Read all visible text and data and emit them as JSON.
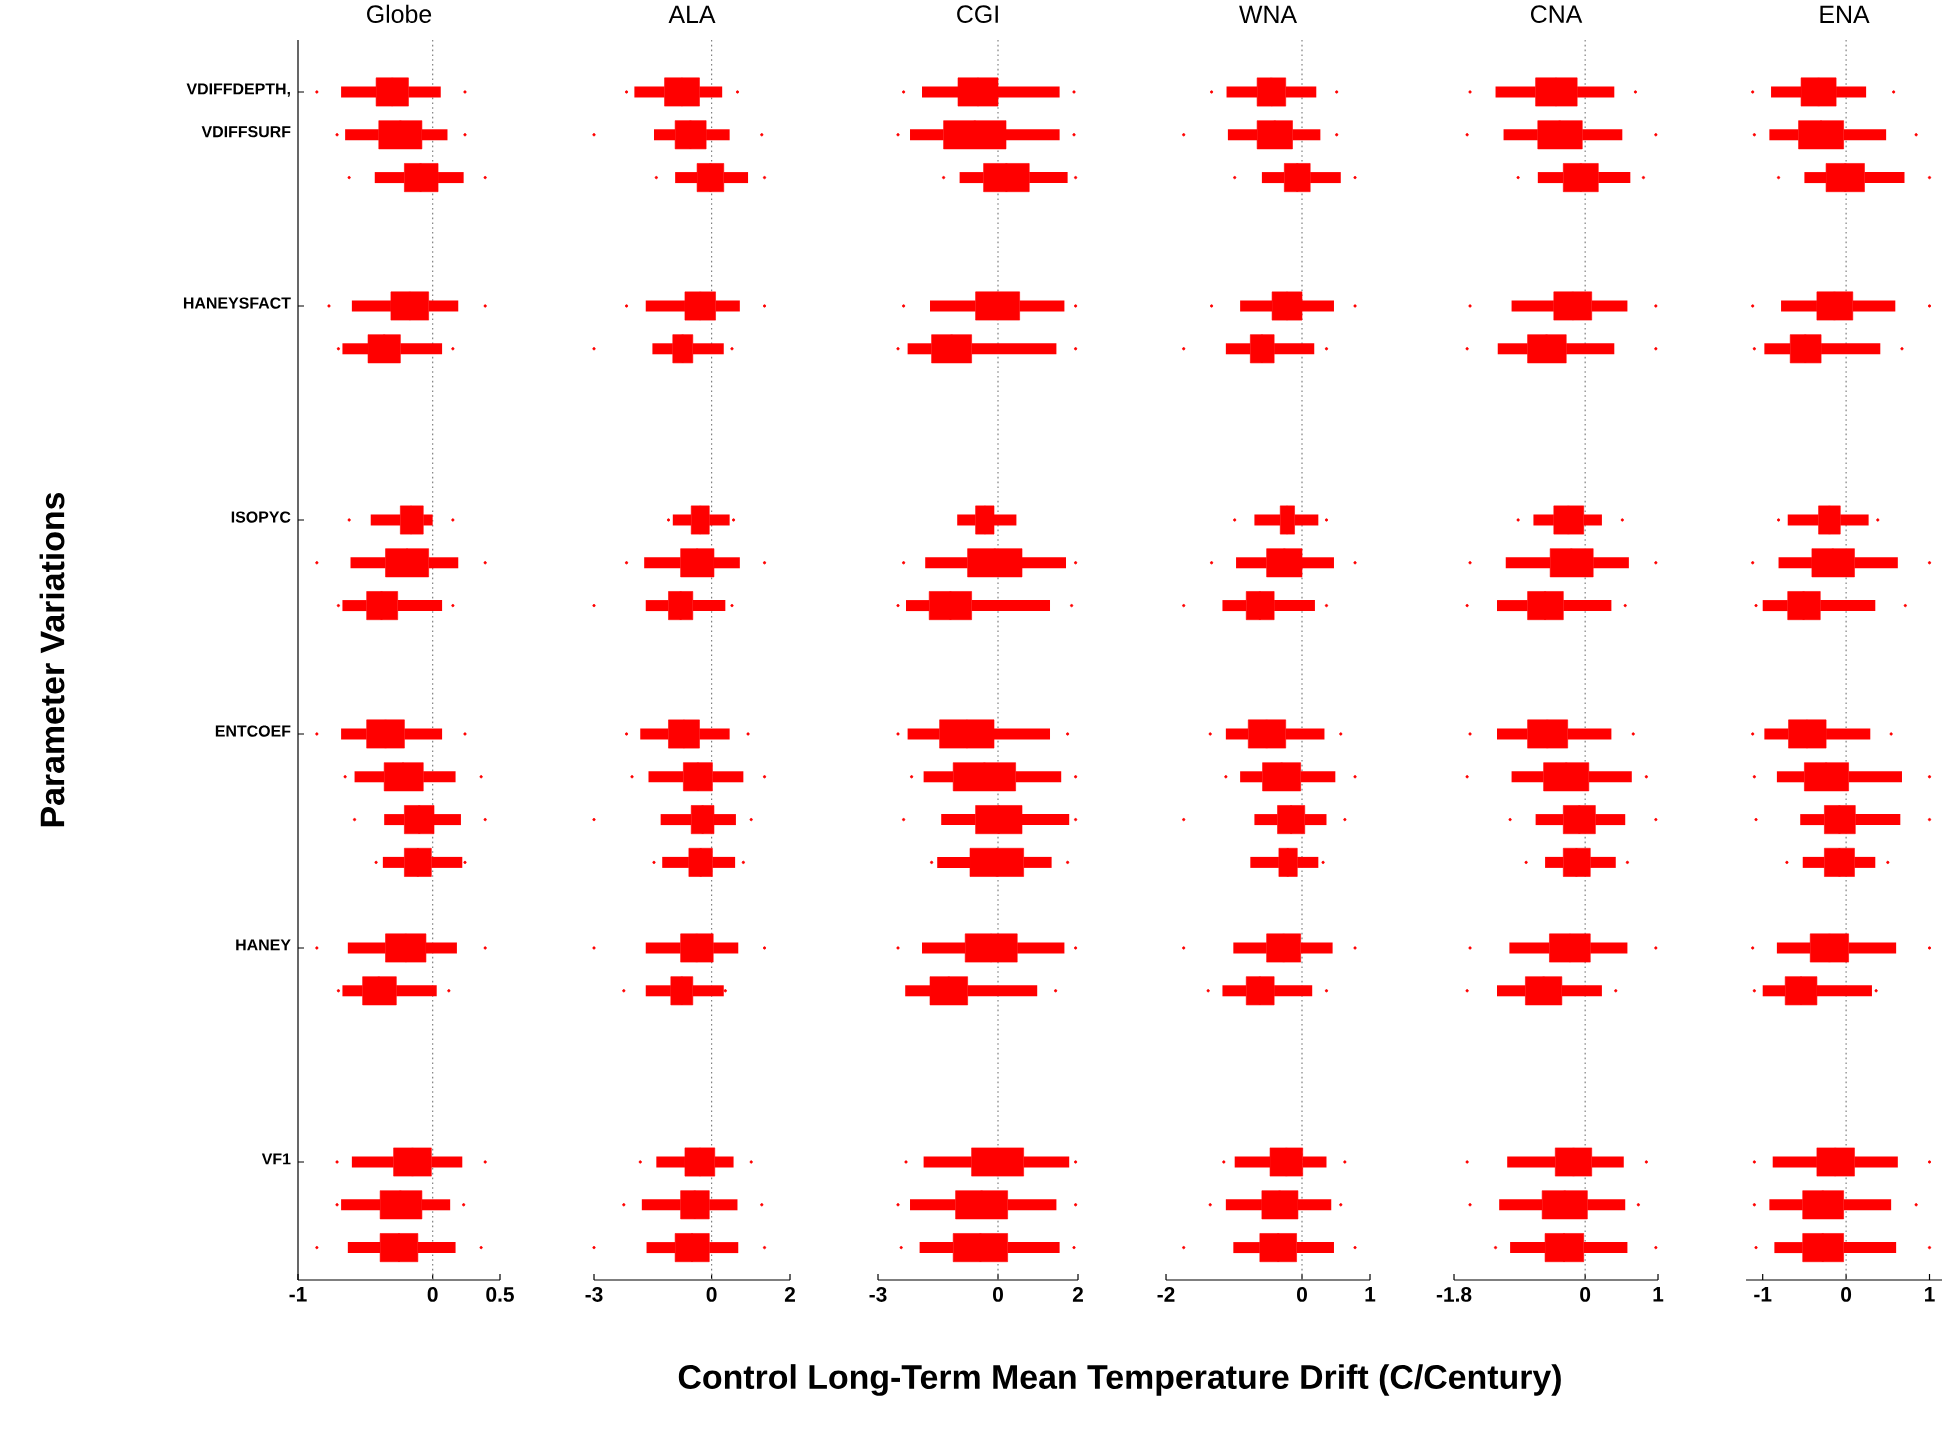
{
  "chart_data": [
    {
      "type": "box",
      "orientation": "horizontal",
      "title": "Globe",
      "xlabel": "Control Long-Term Mean Temperature Drift (C/Century)",
      "ylabel": "Parameter Variations",
      "categories": [
        "VDIFFDEPTH, VDIFFSURF",
        null,
        null,
        null,
        null,
        "HANEYSFACT",
        null,
        null,
        null,
        null,
        "ISOPYC",
        null,
        null,
        null,
        null,
        "ENTCOEF",
        null,
        null,
        null,
        null,
        "HANEY",
        null,
        null,
        null,
        null,
        "VF1",
        null,
        null
      ],
      "xlim": [
        -1,
        0.5
      ],
      "xticks": [
        -1,
        0,
        0.5
      ],
      "ref_lines": [
        {
          "axis": "x",
          "value": 0,
          "color": "#808080",
          "line_style": "dotted"
        }
      ],
      "series": [
        {
          "color": "#ff0000",
          "boxes": [
            {
              "low": -0.68,
              "q1": -0.42,
              "median": -0.3,
              "q3": -0.18,
              "high": 0.06,
              "outliers": [
                -0.86,
                0.24
              ]
            },
            {
              "low": -0.65,
              "q1": -0.4,
              "median": -0.24,
              "q3": -0.08,
              "high": 0.11,
              "outliers": [
                -0.71,
                0.24
              ]
            },
            {
              "low": -0.43,
              "q1": -0.21,
              "median": -0.09,
              "q3": 0.04,
              "high": 0.23,
              "outliers": [
                -0.62,
                0.39
              ]
            },
            null,
            null,
            {
              "low": -0.6,
              "q1": -0.31,
              "median": -0.17,
              "q3": -0.03,
              "high": 0.19,
              "outliers": [
                -0.77,
                0.39
              ]
            },
            {
              "low": -0.67,
              "q1": -0.48,
              "median": -0.36,
              "q3": -0.24,
              "high": 0.07,
              "outliers": [
                -0.7,
                0.15
              ]
            },
            null,
            null,
            null,
            {
              "low": -0.46,
              "q1": -0.24,
              "median": -0.16,
              "q3": -0.07,
              "high": 0.0,
              "outliers": [
                -0.62,
                0.15
              ]
            },
            {
              "low": -0.61,
              "q1": -0.35,
              "median": -0.19,
              "q3": -0.03,
              "high": 0.19,
              "outliers": [
                -0.86,
                0.39
              ]
            },
            {
              "low": -0.67,
              "q1": -0.49,
              "median": -0.38,
              "q3": -0.26,
              "high": 0.07,
              "outliers": [
                -0.7,
                0.15
              ]
            },
            null,
            null,
            {
              "low": -0.68,
              "q1": -0.49,
              "median": -0.35,
              "q3": -0.21,
              "high": 0.07,
              "outliers": [
                -0.86,
                0.24
              ]
            },
            {
              "low": -0.58,
              "q1": -0.36,
              "median": -0.22,
              "q3": -0.07,
              "high": 0.17,
              "outliers": [
                -0.65,
                0.36
              ]
            },
            {
              "low": -0.36,
              "q1": -0.21,
              "median": -0.1,
              "q3": 0.01,
              "high": 0.21,
              "outliers": [
                -0.58,
                0.39
              ]
            },
            {
              "low": -0.37,
              "q1": -0.21,
              "median": -0.11,
              "q3": -0.01,
              "high": 0.22,
              "outliers": [
                -0.42,
                0.24
              ]
            },
            null,
            {
              "low": -0.63,
              "q1": -0.35,
              "median": -0.2,
              "q3": -0.05,
              "high": 0.18,
              "outliers": [
                -0.86,
                0.39
              ]
            },
            {
              "low": -0.67,
              "q1": -0.52,
              "median": -0.4,
              "q3": -0.27,
              "high": 0.03,
              "outliers": [
                -0.7,
                0.12
              ]
            },
            null,
            null,
            null,
            {
              "low": -0.6,
              "q1": -0.29,
              "median": -0.15,
              "q3": -0.01,
              "high": 0.22,
              "outliers": [
                -0.71,
                0.39
              ]
            },
            {
              "low": -0.68,
              "q1": -0.39,
              "median": -0.24,
              "q3": -0.08,
              "high": 0.13,
              "outliers": [
                -0.71,
                0.23
              ]
            },
            {
              "low": -0.63,
              "q1": -0.39,
              "median": -0.25,
              "q3": -0.11,
              "high": 0.17,
              "outliers": [
                -0.86,
                0.36
              ]
            }
          ]
        }
      ]
    },
    {
      "type": "box",
      "orientation": "horizontal",
      "title": "ALA",
      "tick_labels": "x",
      "xlim": [
        -3,
        2
      ],
      "xticks": [
        -3,
        0,
        2
      ],
      "ref_lines": [
        {
          "axis": "x",
          "value": 0,
          "color": "#808080",
          "line_style": "dotted"
        }
      ],
      "series": [
        {
          "color": "#ff0000",
          "boxes": [
            {
              "low": -1.97,
              "q1": -1.2,
              "median": -0.76,
              "q3": -0.31,
              "high": 0.27,
              "outliers": [
                -2.17,
                0.66
              ]
            },
            {
              "low": -1.47,
              "q1": -0.93,
              "median": -0.54,
              "q3": -0.14,
              "high": 0.46,
              "outliers": [
                -3.0,
                1.28
              ]
            },
            {
              "low": -0.93,
              "q1": -0.37,
              "median": -0.03,
              "q3": 0.31,
              "high": 0.93,
              "outliers": [
                -1.41,
                1.35
              ]
            },
            null,
            null,
            {
              "low": -1.68,
              "q1": -0.68,
              "median": -0.29,
              "q3": 0.1,
              "high": 0.72,
              "outliers": [
                -2.17,
                1.35
              ]
            },
            {
              "low": -1.51,
              "q1": -0.99,
              "median": -0.74,
              "q3": -0.48,
              "high": 0.31,
              "outliers": [
                -3.0,
                0.52
              ]
            },
            null,
            null,
            null,
            {
              "low": -0.99,
              "q1": -0.52,
              "median": -0.29,
              "q3": -0.06,
              "high": 0.46,
              "outliers": [
                -1.1,
                0.56
              ]
            },
            {
              "low": -1.72,
              "q1": -0.79,
              "median": -0.37,
              "q3": 0.06,
              "high": 0.72,
              "outliers": [
                -2.17,
                1.35
              ]
            },
            {
              "low": -1.68,
              "q1": -1.1,
              "median": -0.79,
              "q3": -0.48,
              "high": 0.35,
              "outliers": [
                -3.0,
                0.52
              ]
            },
            null,
            null,
            {
              "low": -1.82,
              "q1": -1.1,
              "median": -0.71,
              "q3": -0.31,
              "high": 0.46,
              "outliers": [
                -2.17,
                0.93
              ]
            },
            {
              "low": -1.61,
              "q1": -0.72,
              "median": -0.35,
              "q3": 0.02,
              "high": 0.81,
              "outliers": [
                -2.03,
                1.35
              ]
            },
            {
              "low": -1.3,
              "q1": -0.52,
              "median": -0.23,
              "q3": 0.06,
              "high": 0.62,
              "outliers": [
                -3.0,
                1.01
              ]
            },
            {
              "low": -1.26,
              "q1": -0.58,
              "median": -0.28,
              "q3": 0.02,
              "high": 0.6,
              "outliers": [
                -1.47,
                0.81
              ]
            },
            null,
            {
              "low": -1.68,
              "q1": -0.79,
              "median": -0.38,
              "q3": 0.04,
              "high": 0.68,
              "outliers": [
                -3.0,
                1.35
              ]
            },
            {
              "low": -1.68,
              "q1": -1.04,
              "median": -0.76,
              "q3": -0.48,
              "high": 0.31,
              "outliers": [
                -2.24,
                0.35
              ]
            },
            null,
            null,
            null,
            {
              "low": -1.41,
              "q1": -0.68,
              "median": -0.3,
              "q3": 0.08,
              "high": 0.56,
              "outliers": [
                -1.82,
                1.01
              ]
            },
            {
              "low": -1.78,
              "q1": -0.79,
              "median": -0.43,
              "q3": -0.06,
              "high": 0.66,
              "outliers": [
                -2.24,
                1.28
              ]
            },
            {
              "low": -1.66,
              "q1": -0.93,
              "median": -0.5,
              "q3": -0.06,
              "high": 0.68,
              "outliers": [
                -3.0,
                1.35
              ]
            }
          ]
        }
      ]
    },
    {
      "type": "box",
      "orientation": "horizontal",
      "title": "CGI",
      "tick_labels": "x",
      "xlim": [
        -3,
        2
      ],
      "xticks": [
        -3,
        0,
        2
      ],
      "ref_lines": [
        {
          "axis": "x",
          "value": 0,
          "color": "#808080",
          "line_style": "dotted"
        }
      ],
      "series": [
        {
          "color": "#ff0000",
          "boxes": [
            {
              "low": -1.9,
              "q1": -1.0,
              "median": -0.5,
              "q3": 0.0,
              "high": 1.54,
              "outliers": [
                -2.36,
                1.9
              ]
            },
            {
              "low": -2.2,
              "q1": -1.36,
              "median": -0.58,
              "q3": 0.2,
              "high": 1.54,
              "outliers": [
                -2.5,
                1.9
              ]
            },
            {
              "low": -0.96,
              "q1": -0.36,
              "median": 0.21,
              "q3": 0.78,
              "high": 1.74,
              "outliers": [
                -1.36,
                1.94
              ]
            },
            null,
            null,
            {
              "low": -1.7,
              "q1": -0.56,
              "median": -0.01,
              "q3": 0.54,
              "high": 1.66,
              "outliers": [
                -2.36,
                1.94
              ]
            },
            {
              "low": -2.26,
              "q1": -1.66,
              "median": -1.16,
              "q3": -0.66,
              "high": 1.46,
              "outliers": [
                -2.5,
                1.94
              ]
            },
            null,
            null,
            null,
            {
              "low": -1.02,
              "q1": -0.56,
              "median": -0.33,
              "q3": -0.1,
              "high": 0.46
            },
            {
              "low": -1.82,
              "q1": -0.76,
              "median": -0.08,
              "q3": 0.6,
              "high": 1.7,
              "outliers": [
                -2.36,
                1.94
              ]
            },
            {
              "low": -2.3,
              "q1": -1.72,
              "median": -1.19,
              "q3": -0.66,
              "high": 1.3,
              "outliers": [
                -2.5,
                1.84
              ]
            },
            null,
            null,
            {
              "low": -2.26,
              "q1": -1.46,
              "median": -0.78,
              "q3": -0.1,
              "high": 1.3,
              "outliers": [
                -2.5,
                1.74
              ]
            },
            {
              "low": -1.86,
              "q1": -1.12,
              "median": -0.34,
              "q3": 0.44,
              "high": 1.58,
              "outliers": [
                -2.16,
                1.94
              ]
            },
            {
              "low": -1.42,
              "q1": -0.56,
              "median": 0.02,
              "q3": 0.6,
              "high": 1.78,
              "outliers": [
                -2.36,
                1.94
              ]
            },
            {
              "low": -1.52,
              "q1": -0.7,
              "median": -0.03,
              "q3": 0.64,
              "high": 1.34,
              "outliers": [
                -1.66,
                1.74
              ]
            },
            null,
            {
              "low": -1.9,
              "q1": -0.82,
              "median": -0.17,
              "q3": 0.48,
              "high": 1.66,
              "outliers": [
                -2.5,
                1.94
              ]
            },
            {
              "low": -2.32,
              "q1": -1.7,
              "median": -1.23,
              "q3": -0.76,
              "high": 0.98,
              "outliers": [
                1.44
              ]
            },
            null,
            null,
            null,
            {
              "low": -1.86,
              "q1": -0.66,
              "median": -0.01,
              "q3": 0.64,
              "high": 1.78,
              "outliers": [
                -2.3,
                1.94
              ]
            },
            {
              "low": -2.2,
              "q1": -1.06,
              "median": -0.41,
              "q3": 0.24,
              "high": 1.46,
              "outliers": [
                -2.5,
                1.94
              ]
            },
            {
              "low": -1.96,
              "q1": -1.12,
              "median": -0.44,
              "q3": 0.24,
              "high": 1.54,
              "outliers": [
                -2.42,
                1.9
              ]
            }
          ]
        }
      ]
    },
    {
      "type": "box",
      "orientation": "horizontal",
      "title": "WNA",
      "tick_labels": "x",
      "xlim": [
        -2,
        1
      ],
      "xticks": [
        -2,
        0,
        1
      ],
      "ref_lines": [
        {
          "axis": "x",
          "value": 0,
          "color": "#808080",
          "line_style": "dotted"
        }
      ],
      "series": [
        {
          "color": "#ff0000",
          "boxes": [
            {
              "low": -1.11,
              "q1": -0.66,
              "median": -0.45,
              "q3": -0.24,
              "high": 0.21,
              "outliers": [
                -1.33,
                0.51
              ]
            },
            {
              "low": -1.09,
              "q1": -0.66,
              "median": -0.4,
              "q3": -0.14,
              "high": 0.27,
              "outliers": [
                -1.74,
                0.51
              ]
            },
            {
              "low": -0.59,
              "q1": -0.26,
              "median": -0.07,
              "q3": 0.12,
              "high": 0.57,
              "outliers": [
                -0.99,
                0.78
              ]
            },
            null,
            null,
            {
              "low": -0.91,
              "q1": -0.44,
              "median": -0.22,
              "q3": 0.0,
              "high": 0.47,
              "outliers": [
                -1.33,
                0.78
              ]
            },
            {
              "low": -1.12,
              "q1": -0.76,
              "median": -0.59,
              "q3": -0.41,
              "high": 0.18,
              "outliers": [
                -1.74,
                0.36
              ]
            },
            null,
            null,
            null,
            {
              "low": -0.7,
              "q1": -0.32,
              "median": -0.22,
              "q3": -0.11,
              "high": 0.24,
              "outliers": [
                -0.99,
                0.36
              ]
            },
            {
              "low": -0.97,
              "q1": -0.52,
              "median": -0.26,
              "q3": 0.0,
              "high": 0.47,
              "outliers": [
                -1.33,
                0.78
              ]
            },
            {
              "low": -1.17,
              "q1": -0.82,
              "median": -0.62,
              "q3": -0.41,
              "high": 0.19,
              "outliers": [
                -1.74,
                0.36
              ]
            },
            null,
            null,
            {
              "low": -1.12,
              "q1": -0.79,
              "median": -0.52,
              "q3": -0.24,
              "high": 0.33,
              "outliers": [
                -1.35,
                0.57
              ]
            },
            {
              "low": -0.91,
              "q1": -0.58,
              "median": -0.3,
              "q3": -0.02,
              "high": 0.49,
              "outliers": [
                -1.12,
                0.78
              ]
            },
            {
              "low": -0.7,
              "q1": -0.36,
              "median": -0.16,
              "q3": 0.04,
              "high": 0.36,
              "outliers": [
                -1.74,
                0.63
              ]
            },
            {
              "low": -0.76,
              "q1": -0.34,
              "median": -0.21,
              "q3": -0.07,
              "high": 0.24,
              "outliers": [
                0.31
              ]
            },
            null,
            {
              "low": -1.01,
              "q1": -0.52,
              "median": -0.27,
              "q3": -0.02,
              "high": 0.45,
              "outliers": [
                -1.74,
                0.78
              ]
            },
            {
              "low": -1.17,
              "q1": -0.82,
              "median": -0.62,
              "q3": -0.41,
              "high": 0.15,
              "outliers": [
                -1.38,
                0.36
              ]
            },
            null,
            null,
            null,
            {
              "low": -0.99,
              "q1": -0.47,
              "median": -0.23,
              "q3": 0.01,
              "high": 0.36,
              "outliers": [
                -1.15,
                0.63
              ]
            },
            {
              "low": -1.12,
              "q1": -0.59,
              "median": -0.33,
              "q3": -0.06,
              "high": 0.43,
              "outliers": [
                -1.35,
                0.57
              ]
            },
            {
              "low": -1.01,
              "q1": -0.62,
              "median": -0.35,
              "q3": -0.08,
              "high": 0.47,
              "outliers": [
                -1.74,
                0.78
              ]
            }
          ]
        }
      ]
    },
    {
      "type": "box",
      "orientation": "horizontal",
      "title": "CNA",
      "tick_labels": "x",
      "xlim": [
        -1.8,
        1
      ],
      "xticks": [
        -1.8,
        0,
        1
      ],
      "ref_lines": [
        {
          "axis": "x",
          "value": 0,
          "color": "#808080",
          "line_style": "dotted"
        }
      ],
      "series": [
        {
          "color": "#ff0000",
          "boxes": [
            {
              "low": -1.23,
              "q1": -0.68,
              "median": -0.4,
              "q3": -0.11,
              "high": 0.4,
              "outliers": [
                -1.58,
                0.69
              ]
            },
            {
              "low": -1.12,
              "q1": -0.65,
              "median": -0.35,
              "q3": -0.04,
              "high": 0.51,
              "outliers": [
                -1.62,
                0.97
              ]
            },
            {
              "low": -0.65,
              "q1": -0.3,
              "median": -0.06,
              "q3": 0.18,
              "high": 0.62,
              "outliers": [
                -0.92,
                0.8
              ]
            },
            null,
            null,
            {
              "low": -1.01,
              "q1": -0.43,
              "median": -0.17,
              "q3": 0.09,
              "high": 0.58,
              "outliers": [
                -1.58,
                0.97
              ]
            },
            {
              "low": -1.2,
              "q1": -0.79,
              "median": -0.53,
              "q3": -0.26,
              "high": 0.4,
              "outliers": [
                -1.62,
                0.97
              ]
            },
            null,
            null,
            null,
            {
              "low": -0.71,
              "q1": -0.43,
              "median": -0.23,
              "q3": -0.02,
              "high": 0.23,
              "outliers": [
                -0.92,
                0.51
              ]
            },
            {
              "low": -1.09,
              "q1": -0.48,
              "median": -0.19,
              "q3": 0.11,
              "high": 0.6,
              "outliers": [
                -1.58,
                0.97
              ]
            },
            {
              "low": -1.21,
              "q1": -0.79,
              "median": -0.55,
              "q3": -0.3,
              "high": 0.36,
              "outliers": [
                -1.62,
                0.55
              ]
            },
            null,
            null,
            {
              "low": -1.21,
              "q1": -0.79,
              "median": -0.52,
              "q3": -0.24,
              "high": 0.36,
              "outliers": [
                -1.58,
                0.66
              ]
            },
            {
              "low": -1.01,
              "q1": -0.57,
              "median": -0.26,
              "q3": 0.05,
              "high": 0.64,
              "outliers": [
                -1.62,
                0.84
              ]
            },
            {
              "low": -0.68,
              "q1": -0.3,
              "median": -0.08,
              "q3": 0.14,
              "high": 0.55,
              "outliers": [
                -1.03,
                0.97
              ]
            },
            {
              "low": -0.55,
              "q1": -0.3,
              "median": -0.12,
              "q3": 0.07,
              "high": 0.42,
              "outliers": [
                -0.81,
                0.58
              ]
            },
            null,
            {
              "low": -1.04,
              "q1": -0.49,
              "median": -0.21,
              "q3": 0.07,
              "high": 0.58,
              "outliers": [
                -1.58,
                0.97
              ]
            },
            {
              "low": -1.21,
              "q1": -0.82,
              "median": -0.57,
              "q3": -0.32,
              "high": 0.23,
              "outliers": [
                -1.62,
                0.42
              ]
            },
            null,
            null,
            null,
            {
              "low": -1.07,
              "q1": -0.41,
              "median": -0.16,
              "q3": 0.09,
              "high": 0.53,
              "outliers": [
                -1.62,
                0.84
              ]
            },
            {
              "low": -1.18,
              "q1": -0.59,
              "median": -0.28,
              "q3": 0.03,
              "high": 0.55,
              "outliers": [
                -1.58,
                0.73
              ]
            },
            {
              "low": -1.03,
              "q1": -0.55,
              "median": -0.29,
              "q3": -0.02,
              "high": 0.58,
              "outliers": [
                -1.23,
                0.97
              ]
            }
          ]
        }
      ]
    },
    {
      "type": "box",
      "orientation": "horizontal",
      "title": "ENA",
      "tick_labels": "x",
      "xlim": [
        -1.2,
        1.15
      ],
      "xticks": [
        -1,
        0,
        1
      ],
      "ref_lines": [
        {
          "axis": "x",
          "value": 0,
          "color": "#808080",
          "line_style": "dotted"
        }
      ],
      "series": [
        {
          "color": "#ff0000",
          "boxes": [
            {
              "low": -0.9,
              "q1": -0.54,
              "median": -0.33,
              "q3": -0.12,
              "high": 0.24,
              "outliers": [
                -1.12,
                0.57
              ]
            },
            {
              "low": -0.92,
              "q1": -0.57,
              "median": -0.3,
              "q3": -0.03,
              "high": 0.48,
              "outliers": [
                -1.1,
                0.84
              ]
            },
            {
              "low": -0.5,
              "q1": -0.24,
              "median": -0.01,
              "q3": 0.22,
              "high": 0.7,
              "outliers": [
                -0.81,
                1.0
              ]
            },
            null,
            null,
            {
              "low": -0.78,
              "q1": -0.35,
              "median": -0.14,
              "q3": 0.08,
              "high": 0.59,
              "outliers": [
                -1.12,
                1.0
              ]
            },
            {
              "low": -0.98,
              "q1": -0.67,
              "median": -0.49,
              "q3": -0.3,
              "high": 0.41,
              "outliers": [
                -1.1,
                0.67
              ]
            },
            null,
            null,
            null,
            {
              "low": -0.7,
              "q1": -0.33,
              "median": -0.2,
              "q3": -0.07,
              "high": 0.27,
              "outliers": [
                -0.81,
                0.38
              ]
            },
            {
              "low": -0.81,
              "q1": -0.41,
              "median": -0.16,
              "q3": 0.1,
              "high": 0.62,
              "outliers": [
                -1.12,
                1.0
              ]
            },
            {
              "low": -1.0,
              "q1": -0.7,
              "median": -0.51,
              "q3": -0.31,
              "high": 0.35,
              "outliers": [
                -1.08,
                0.71
              ]
            },
            null,
            null,
            {
              "low": -0.98,
              "q1": -0.69,
              "median": -0.47,
              "q3": -0.24,
              "high": 0.29,
              "outliers": [
                -1.12,
                0.54
              ]
            },
            {
              "low": -0.83,
              "q1": -0.5,
              "median": -0.24,
              "q3": 0.03,
              "high": 0.67,
              "outliers": [
                -1.1,
                1.0
              ]
            },
            {
              "low": -0.55,
              "q1": -0.26,
              "median": -0.08,
              "q3": 0.11,
              "high": 0.65,
              "outliers": [
                -1.08,
                1.0
              ]
            },
            {
              "low": -0.52,
              "q1": -0.26,
              "median": -0.08,
              "q3": 0.1,
              "high": 0.35,
              "outliers": [
                -0.71,
                0.5
              ]
            },
            null,
            {
              "low": -0.83,
              "q1": -0.43,
              "median": -0.2,
              "q3": 0.03,
              "high": 0.6,
              "outliers": [
                -1.12,
                1.0
              ]
            },
            {
              "low": -1.0,
              "q1": -0.73,
              "median": -0.54,
              "q3": -0.35,
              "high": 0.31,
              "outliers": [
                -1.1,
                0.36
              ]
            },
            null,
            null,
            null,
            {
              "low": -0.88,
              "q1": -0.35,
              "median": -0.13,
              "q3": 0.1,
              "high": 0.62,
              "outliers": [
                -1.1,
                1.0
              ]
            },
            {
              "low": -0.92,
              "q1": -0.52,
              "median": -0.28,
              "q3": -0.03,
              "high": 0.54,
              "outliers": [
                -1.1,
                0.84
              ]
            },
            {
              "low": -0.86,
              "q1": -0.52,
              "median": -0.28,
              "q3": -0.03,
              "high": 0.6,
              "outliers": [
                -1.08,
                1.0
              ]
            }
          ]
        }
      ]
    }
  ]
}
